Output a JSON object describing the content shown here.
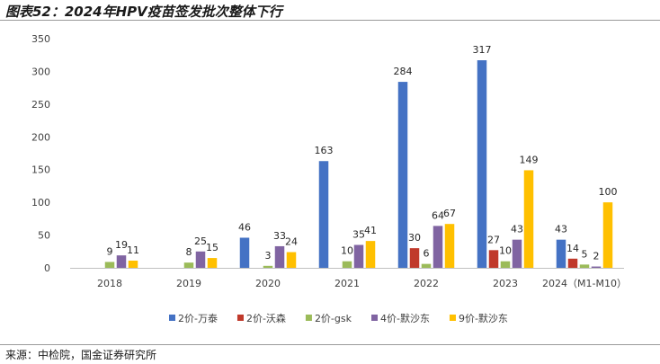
{
  "figure": {
    "title": "图表52：2024年HPV疫苗签发批次整体下行",
    "source": "来源：中检院，国金证券研究所"
  },
  "chart_data": {
    "type": "bar",
    "categories": [
      "2018",
      "2019",
      "2020",
      "2021",
      "2022",
      "2023",
      "2024（M1-M10）"
    ],
    "ylim": [
      0,
      350
    ],
    "yticks": [
      0,
      50,
      100,
      150,
      200,
      250,
      300,
      350
    ],
    "grid": false,
    "legend_position": "bottom",
    "series": [
      {
        "name": "2价-万泰",
        "color": "#4472C4",
        "values": [
          null,
          null,
          46,
          163,
          284,
          317,
          43
        ]
      },
      {
        "name": "2价-沃森",
        "color": "#C0392B",
        "values": [
          null,
          null,
          null,
          null,
          30,
          27,
          14
        ]
      },
      {
        "name": "2价-gsk",
        "color": "#9BBB59",
        "values": [
          9,
          8,
          3,
          10,
          6,
          10,
          5
        ]
      },
      {
        "name": "4价-默沙东",
        "color": "#8064A2",
        "values": [
          19,
          25,
          33,
          35,
          64,
          43,
          2
        ]
      },
      {
        "name": "9价-默沙东",
        "color": "#FFC000",
        "values": [
          11,
          15,
          24,
          41,
          67,
          149,
          100
        ]
      }
    ]
  }
}
